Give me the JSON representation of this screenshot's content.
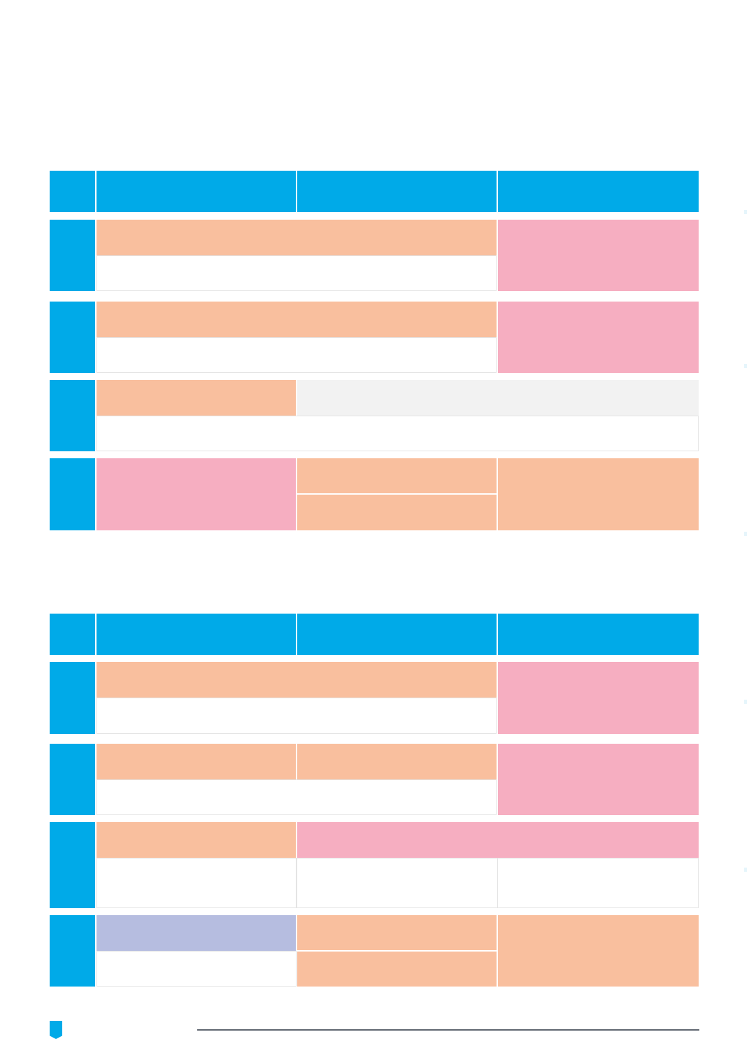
{
  "colors": {
    "header_blue": "#00aae8",
    "peach": "#f9bf9e",
    "pink": "#f6aec1",
    "lavender": "#b6bde0",
    "light_gray": "#f2f2f2",
    "white": "#ffffff",
    "footer_line": "#5f6670"
  },
  "icons": {
    "footer_badge": "shield-badge-icon"
  }
}
